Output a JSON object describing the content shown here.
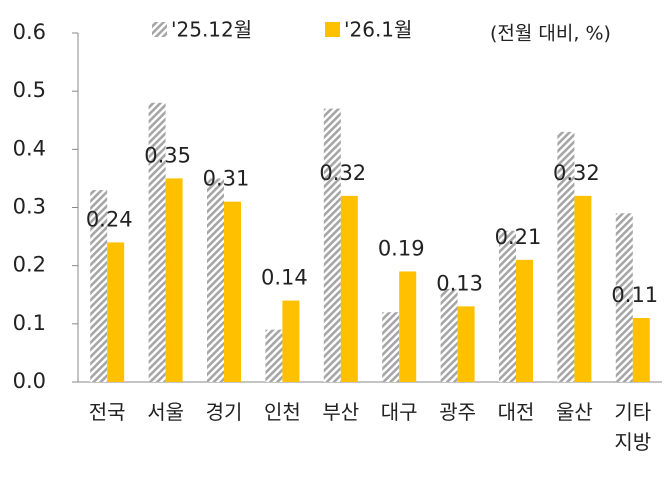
{
  "chart_data": {
    "type": "bar",
    "unit_label": "(전월 대비, %)",
    "categories": [
      "전국",
      "서울",
      "경기",
      "인천",
      "부산",
      "대구",
      "광주",
      "대전",
      "울산",
      "기타\n지방"
    ],
    "series": [
      {
        "name": "'25.12월",
        "color": "#a6a6a6",
        "pattern": "hatch",
        "values": [
          0.33,
          0.48,
          0.35,
          0.09,
          0.47,
          0.12,
          0.16,
          0.26,
          0.43,
          0.29
        ]
      },
      {
        "name": "'26.1월",
        "color": "#ffc000",
        "data_labels": true,
        "values": [
          0.24,
          0.35,
          0.31,
          0.14,
          0.32,
          0.19,
          0.13,
          0.21,
          0.32,
          0.11
        ]
      }
    ],
    "ylim": [
      0,
      0.6
    ],
    "yticks": [
      {
        "value": 0,
        "label": "0.0"
      },
      0.1,
      0.2,
      0.3,
      0.4,
      0.5,
      0.6
    ],
    "legend": "top"
  }
}
